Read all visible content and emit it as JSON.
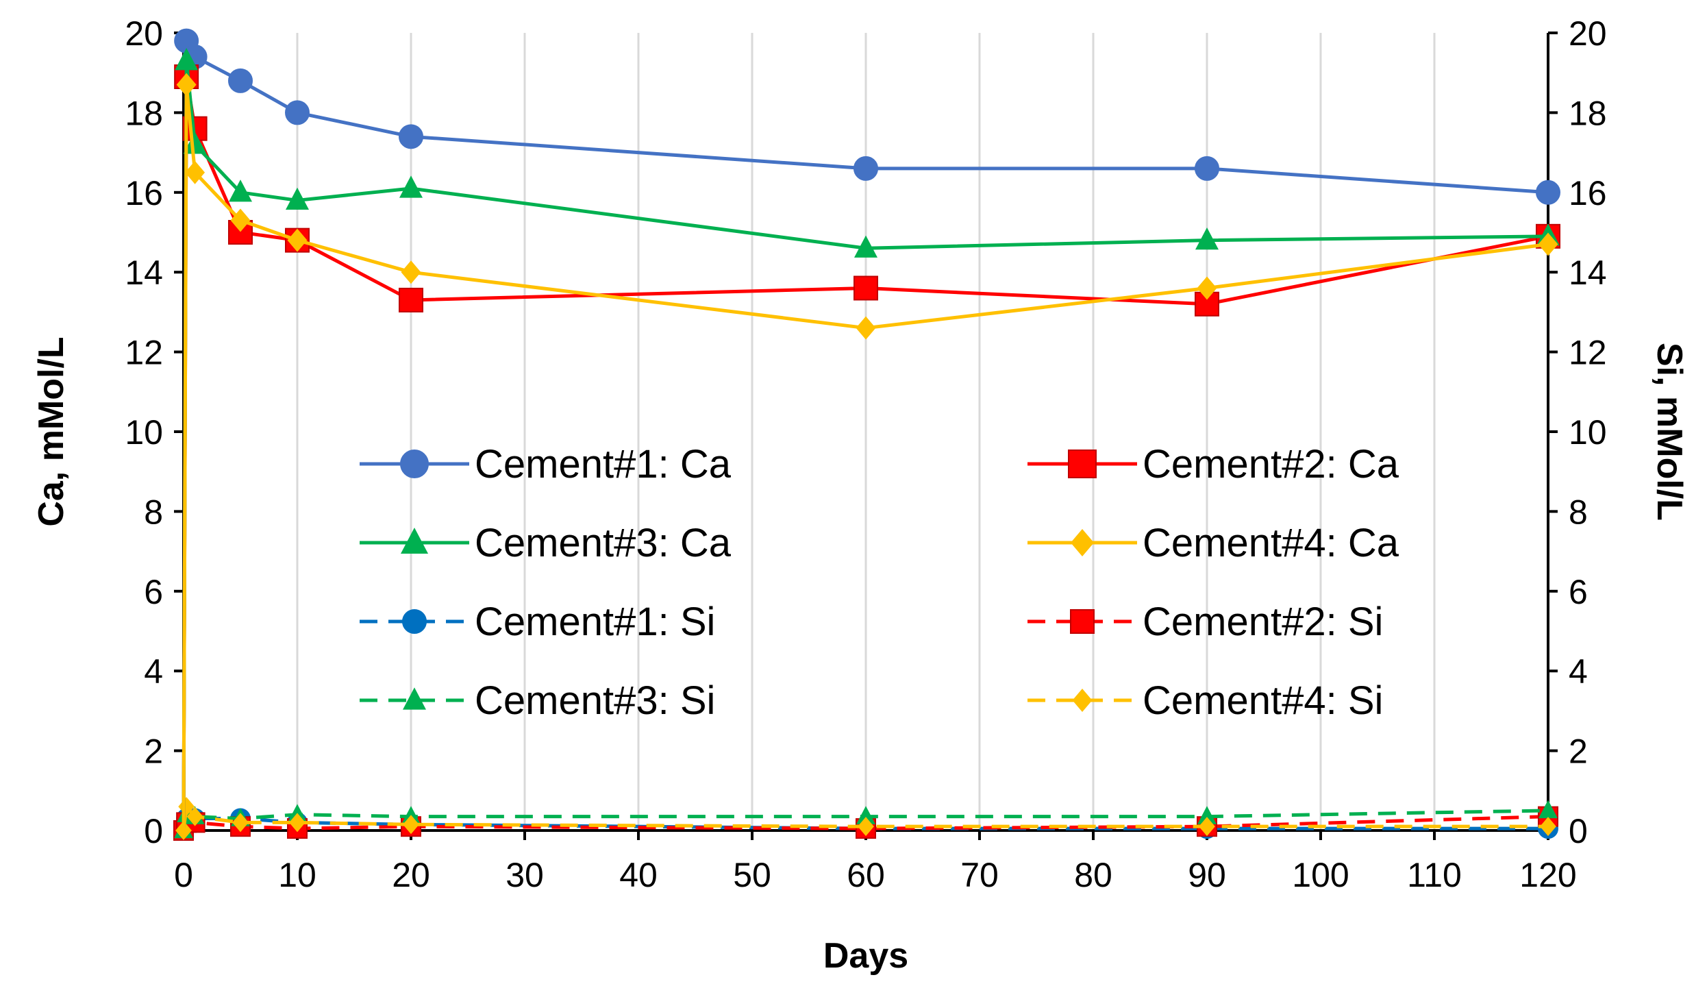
{
  "chart_data": {
    "type": "line",
    "xlabel": "Days",
    "ylabel": "Ca, mMol/L",
    "y2label": "Si, mMol/L",
    "xlim": [
      0,
      120
    ],
    "ylim": [
      0,
      20
    ],
    "y2lim": [
      0,
      20
    ],
    "x_ticks": [
      0,
      10,
      20,
      30,
      40,
      50,
      60,
      70,
      80,
      90,
      100,
      110,
      120
    ],
    "y_ticks": [
      0,
      2,
      4,
      6,
      8,
      10,
      12,
      14,
      16,
      18,
      20
    ],
    "y2_ticks": [
      0,
      2,
      4,
      6,
      8,
      10,
      12,
      14,
      16,
      18,
      20
    ],
    "grid": "vertical",
    "legend_position": "center",
    "series": [
      {
        "name": "Cement#1: Ca",
        "color": "#4472C4",
        "marker": "circle",
        "dash": "solid",
        "x": [
          0,
          0.25,
          1,
          5,
          10,
          20,
          60,
          90,
          120
        ],
        "y": [
          0,
          19.8,
          19.4,
          18.8,
          18.0,
          17.4,
          16.6,
          16.6,
          16.0
        ]
      },
      {
        "name": "Cement#2: Ca",
        "color": "#FF0000",
        "marker": "square",
        "dash": "solid",
        "x": [
          0,
          0.25,
          1,
          5,
          10,
          20,
          60,
          90,
          120
        ],
        "y": [
          0,
          18.9,
          17.6,
          15.0,
          14.8,
          13.3,
          13.6,
          13.2,
          14.9
        ]
      },
      {
        "name": "Cement#3: Ca",
        "color": "#00B050",
        "marker": "triangle",
        "dash": "solid",
        "x": [
          0,
          0.25,
          1,
          5,
          10,
          20,
          60,
          90,
          120
        ],
        "y": [
          0,
          19.3,
          17.2,
          16.0,
          15.8,
          16.1,
          14.6,
          14.8,
          14.9
        ]
      },
      {
        "name": "Cement#4: Ca",
        "color": "#FFC000",
        "marker": "diamond",
        "dash": "solid",
        "x": [
          0,
          0.25,
          1,
          5,
          10,
          20,
          60,
          90,
          120
        ],
        "y": [
          0,
          18.7,
          16.5,
          15.3,
          14.8,
          14.0,
          12.6,
          13.6,
          14.7
        ]
      },
      {
        "name": "Cement#1: Si",
        "color": "#0070C0",
        "marker": "circle",
        "dash": "dashed",
        "x": [
          0,
          0.25,
          1,
          5,
          10,
          20,
          60,
          90,
          120
        ],
        "y": [
          0,
          0.3,
          0.3,
          0.3,
          0.2,
          0.15,
          0.05,
          0.05,
          0.05
        ]
      },
      {
        "name": "Cement#2: Si",
        "color": "#FF0000",
        "marker": "square",
        "dash": "dashed",
        "x": [
          0,
          0.25,
          1,
          5,
          10,
          20,
          60,
          90,
          120
        ],
        "y": [
          0,
          0.2,
          0.2,
          0.1,
          0.05,
          0.1,
          0.05,
          0.1,
          0.35
        ]
      },
      {
        "name": "Cement#3: Si",
        "color": "#00B050",
        "marker": "triangle",
        "dash": "dashed",
        "x": [
          0,
          0.25,
          1,
          5,
          10,
          20,
          60,
          90,
          120
        ],
        "y": [
          0,
          0.4,
          0.35,
          0.3,
          0.4,
          0.35,
          0.35,
          0.35,
          0.5
        ]
      },
      {
        "name": "Cement#4: Si",
        "color": "#FFC000",
        "marker": "diamond",
        "dash": "dashed",
        "x": [
          0,
          0.25,
          1,
          5,
          10,
          20,
          60,
          90,
          120
        ],
        "y": [
          0,
          0.6,
          0.35,
          0.2,
          0.2,
          0.15,
          0.1,
          0.1,
          0.1
        ]
      }
    ]
  }
}
